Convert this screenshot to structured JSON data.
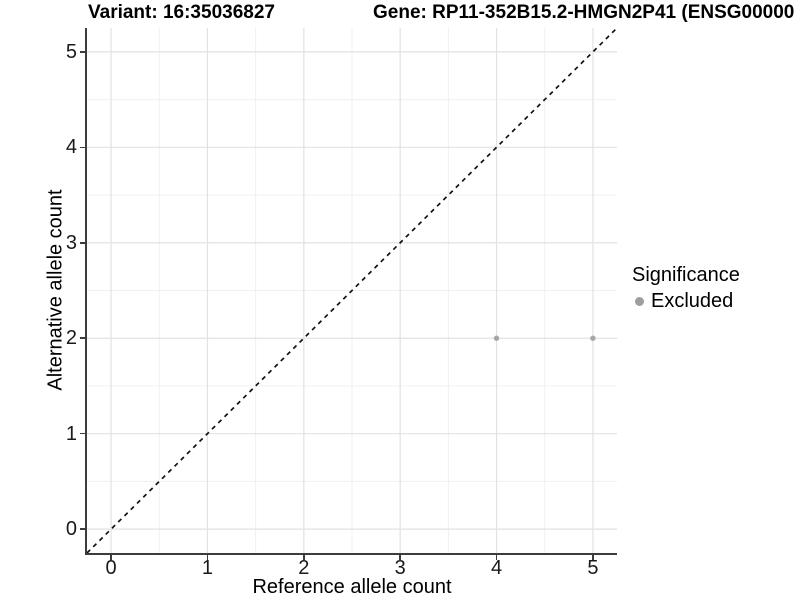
{
  "page": {
    "title_left": "Variant: 16:35036827",
    "title_right": "Gene: RP11-352B15.2-HMGN2P41 (ENSG00000"
  },
  "chart_data": {
    "type": "scatter",
    "title": "Variant: 16:35036827",
    "xlabel": "Reference allele count",
    "ylabel": "Alternative allele count",
    "x_ticks": [
      0,
      1,
      2,
      3,
      4,
      5
    ],
    "y_ticks": [
      0,
      1,
      2,
      3,
      4,
      5
    ],
    "xlim": [
      -0.25,
      5.25
    ],
    "ylim": [
      -0.25,
      5.25
    ],
    "grid": {
      "major": true,
      "minor": true
    },
    "identity_line": {
      "show": true,
      "style": "dashed",
      "color": "#111111"
    },
    "series": [
      {
        "name": "Excluded",
        "color": "#a6a6a6",
        "points": [
          {
            "x": 4,
            "y": 2
          },
          {
            "x": 5,
            "y": 2
          }
        ]
      }
    ],
    "legend": {
      "position": "right",
      "title": "Significance",
      "items": [
        {
          "label": "Excluded",
          "color": "#9e9e9e",
          "marker": "circle"
        }
      ]
    }
  },
  "colors": {
    "panel_bg": "#ffffff",
    "grid_major": "#e2e2e2",
    "grid_minor": "#f0f0f0",
    "axis_line": "#3c3c3c",
    "tick_label": "#1a1a1a",
    "point": "#a6a6a6",
    "dashed_line": "#111111"
  }
}
